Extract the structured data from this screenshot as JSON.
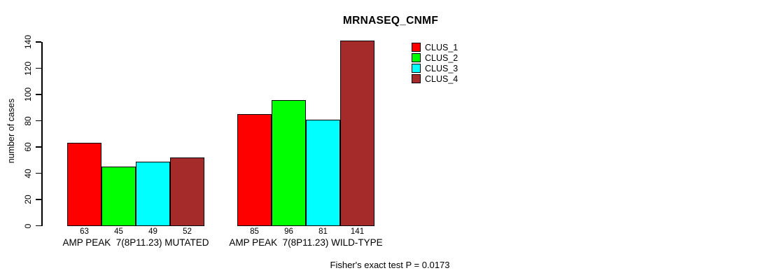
{
  "chart_data": {
    "type": "bar",
    "title": "MRNASEQ_CNMF",
    "ylabel": "number of cases",
    "ylim": [
      0,
      140
    ],
    "yticks": [
      0,
      20,
      40,
      60,
      80,
      100,
      120,
      140
    ],
    "categories": [
      "AMP PEAK  7(8P11.23) MUTATED",
      "AMP PEAK  7(8P11.23) WILD-TYPE"
    ],
    "series": [
      {
        "name": "CLUS_1",
        "color": "#ff0000",
        "values": [
          63,
          85
        ]
      },
      {
        "name": "CLUS_2",
        "color": "#00ff00",
        "values": [
          45,
          96
        ]
      },
      {
        "name": "CLUS_3",
        "color": "#00ffff",
        "values": [
          49,
          81
        ]
      },
      {
        "name": "CLUS_4",
        "color": "#a52a2a",
        "values": [
          52,
          141
        ]
      }
    ],
    "bar_value_labels": [
      [
        63,
        45,
        49,
        52
      ],
      [
        85,
        96,
        81,
        141
      ]
    ],
    "legend_position": "right-top",
    "grid": false,
    "caption": "Fisher's exact test P = 0.0173",
    "background_color": "#ffffff",
    "bar_border_color": "#000000"
  }
}
